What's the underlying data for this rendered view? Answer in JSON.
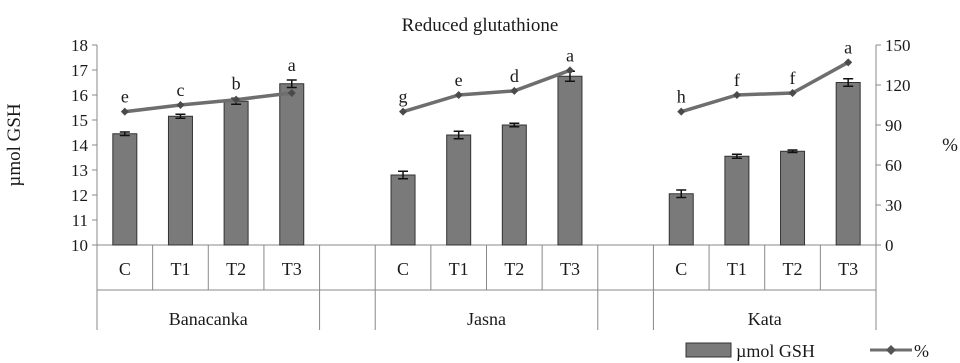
{
  "chart_data": {
    "type": "bar",
    "title": "Reduced glutathione",
    "ylabel": "µmol GSH",
    "y2label": "%",
    "ylim": [
      10,
      18
    ],
    "yticks": [
      "10",
      "11",
      "12",
      "13",
      "14",
      "15",
      "16",
      "17",
      "18"
    ],
    "y2lim": [
      0,
      150
    ],
    "y2ticks": [
      "0",
      "30",
      "60",
      "90",
      "120",
      "150"
    ],
    "grid": false,
    "legend_position": "bottom-right",
    "groups": [
      {
        "name": "Banacanka",
        "categories": [
          "C",
          "T1",
          "T2",
          "T3"
        ],
        "values": [
          14.45,
          15.15,
          15.75,
          16.45
        ],
        "errors": [
          0.07,
          0.08,
          0.12,
          0.15
        ],
        "percent": [
          100,
          105,
          109,
          114
        ],
        "letters": [
          "e",
          "c",
          "b",
          "a"
        ]
      },
      {
        "name": "Jasna",
        "categories": [
          "C",
          "T1",
          "T2",
          "T3"
        ],
        "values": [
          12.8,
          14.4,
          14.8,
          16.75
        ],
        "errors": [
          0.15,
          0.15,
          0.07,
          0.2
        ],
        "percent": [
          100,
          112.5,
          115.6,
          131
        ],
        "letters": [
          "g",
          "e",
          "d",
          "a"
        ]
      },
      {
        "name": "Kata",
        "categories": [
          "C",
          "T1",
          "T2",
          "T3"
        ],
        "values": [
          12.05,
          13.55,
          13.75,
          16.5
        ],
        "errors": [
          0.15,
          0.08,
          0.05,
          0.15
        ],
        "percent": [
          100,
          112.5,
          114,
          137
        ],
        "letters": [
          "h",
          "f",
          "f",
          "a"
        ]
      }
    ],
    "series": [
      {
        "name": "µmol GSH",
        "kind": "bar",
        "color": "#7a7a7a"
      },
      {
        "name": "%",
        "kind": "line",
        "color": "#6e6e6e"
      }
    ]
  }
}
